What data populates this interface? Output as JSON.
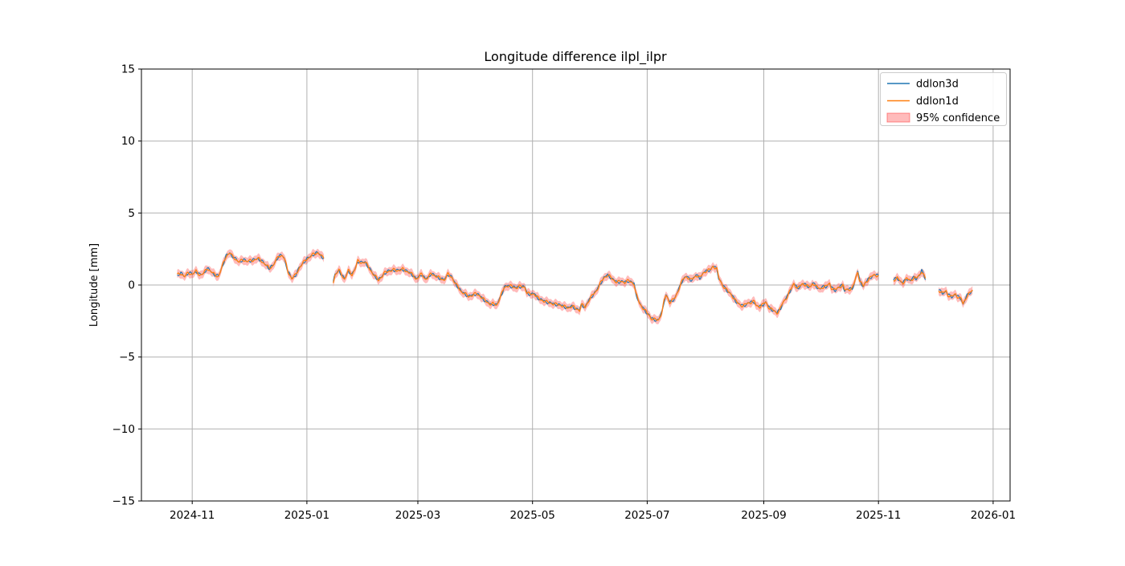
{
  "figure": {
    "title": "Longitude difference ilpl_ilpr",
    "ylabel": "Longitude [mm]"
  },
  "colors": {
    "background": "#ffffff",
    "grid": "#b0b0b0",
    "axes_frame": "#000000",
    "legend_edge": "#cccccc"
  },
  "chart_data": {
    "type": "line",
    "title": "Longitude difference ilpl_ilpr",
    "xlabel": "",
    "ylabel": "Longitude [mm]",
    "grid": true,
    "legend_position": "upper right",
    "ylim": [
      -15,
      15
    ],
    "y_ticks": [
      "−15",
      "−10",
      "−5",
      "0",
      "5",
      "10",
      "15"
    ],
    "y_tick_values": [
      -15,
      -10,
      -5,
      0,
      5,
      10,
      15
    ],
    "x_axis": {
      "epoch": "2024-10-05",
      "span_days": 462,
      "ticks": [
        {
          "label": "2024-11",
          "day": 27
        },
        {
          "label": "2025-01",
          "day": 88
        },
        {
          "label": "2025-03",
          "day": 147
        },
        {
          "label": "2025-05",
          "day": 208
        },
        {
          "label": "2025-07",
          "day": 269
        },
        {
          "label": "2025-09",
          "day": 331
        },
        {
          "label": "2025-11",
          "day": 392
        },
        {
          "label": "2026-01",
          "day": 453
        }
      ]
    },
    "series": [
      {
        "name": "ddlon3d",
        "color": "#1f77b4",
        "line_width": 1.2
      },
      {
        "name": "ddlon1d",
        "color": "#ff7f0e",
        "line_width": 1.3
      }
    ],
    "series_note": "ddlon3d and ddlon1d overlap within line width at this scale; shared sampled signal below as [days since 2024-10-05, mm]; null marks a data gap",
    "noise_amplitude_mm": 0.12,
    "confidence_band": {
      "label": "95% confidence",
      "color": "#ff3c3c",
      "alpha": 0.35,
      "half_width_mm": 0.28
    },
    "points_day_mm": [
      [
        19,
        0.7
      ],
      [
        21,
        0.8
      ],
      [
        23,
        0.6
      ],
      [
        25,
        0.85
      ],
      [
        27,
        0.75
      ],
      [
        29,
        0.95
      ],
      [
        31,
        0.7
      ],
      [
        33,
        0.8
      ],
      [
        35,
        1.15
      ],
      [
        37,
        0.95
      ],
      [
        39,
        0.7
      ],
      [
        41,
        0.6
      ],
      [
        43,
        1.3
      ],
      [
        45,
        2.0
      ],
      [
        47,
        2.25
      ],
      [
        48,
        2.05
      ],
      [
        50,
        1.8
      ],
      [
        52,
        1.6
      ],
      [
        54,
        1.75
      ],
      [
        56,
        1.65
      ],
      [
        59,
        1.7
      ],
      [
        61,
        1.8
      ],
      [
        62,
        1.85
      ],
      [
        64,
        1.65
      ],
      [
        67,
        1.3
      ],
      [
        68,
        1.15
      ],
      [
        70,
        1.35
      ],
      [
        71,
        1.6
      ],
      [
        73,
        2.0
      ],
      [
        75,
        2.05
      ],
      [
        76,
        1.85
      ],
      [
        78,
        0.9
      ],
      [
        80,
        0.45
      ],
      [
        82,
        0.7
      ],
      [
        84,
        1.2
      ],
      [
        86,
        1.55
      ],
      [
        88,
        1.8
      ],
      [
        91,
        2.1
      ],
      [
        92,
        2.15
      ],
      [
        94,
        2.25
      ],
      [
        96,
        1.95
      ],
      [
        97,
        1.9
      ],
      null,
      [
        102,
        0.2
      ],
      [
        103,
        0.7
      ],
      [
        105,
        1.05
      ],
      [
        106,
        0.8
      ],
      [
        108,
        0.4
      ],
      [
        110,
        1.0
      ],
      [
        112,
        0.7
      ],
      [
        114,
        1.25
      ],
      [
        115,
        1.65
      ],
      [
        117,
        1.55
      ],
      [
        119,
        1.6
      ],
      [
        121,
        1.2
      ],
      [
        123,
        0.8
      ],
      [
        125,
        0.5
      ],
      [
        126,
        0.35
      ],
      [
        128,
        0.6
      ],
      [
        129,
        0.8
      ],
      [
        131,
        0.95
      ],
      [
        134,
        1.05
      ],
      [
        136,
        1.0
      ],
      [
        139,
        1.1
      ],
      [
        141,
        0.95
      ],
      [
        143,
        0.85
      ],
      [
        145,
        0.6
      ],
      [
        146,
        0.4
      ],
      [
        148,
        0.65
      ],
      [
        149,
        0.75
      ],
      [
        151,
        0.4
      ],
      [
        153,
        0.6
      ],
      [
        154,
        0.8
      ],
      [
        156,
        0.65
      ],
      [
        157,
        0.6
      ],
      [
        159,
        0.45
      ],
      [
        161,
        0.35
      ],
      [
        163,
        0.75
      ],
      [
        165,
        0.55
      ],
      [
        167,
        0.1
      ],
      [
        169,
        -0.25
      ],
      [
        170,
        -0.45
      ],
      [
        172,
        -0.6
      ],
      [
        174,
        -0.8
      ],
      [
        176,
        -0.7
      ],
      [
        178,
        -0.6
      ],
      [
        180,
        -0.75
      ],
      [
        182,
        -1.0
      ],
      [
        184,
        -1.2
      ],
      [
        186,
        -1.35
      ],
      [
        187,
        -1.3
      ],
      [
        189,
        -1.4
      ],
      [
        190,
        -1.1
      ],
      [
        192,
        -0.5
      ],
      [
        193,
        -0.15
      ],
      [
        195,
        -0.05
      ],
      [
        197,
        -0.1
      ],
      [
        199,
        -0.2
      ],
      [
        201,
        -0.1
      ],
      [
        204,
        -0.15
      ],
      [
        205,
        -0.55
      ],
      [
        207,
        -0.65
      ],
      [
        209,
        -0.6
      ],
      [
        210,
        -0.8
      ],
      [
        212,
        -1.0
      ],
      [
        214,
        -1.1
      ],
      [
        216,
        -1.2
      ],
      [
        219,
        -1.3
      ],
      [
        221,
        -1.35
      ],
      [
        223,
        -1.4
      ],
      [
        225,
        -1.5
      ],
      [
        227,
        -1.6
      ],
      [
        229,
        -1.45
      ],
      [
        231,
        -1.65
      ],
      [
        233,
        -1.75
      ],
      [
        234,
        -1.35
      ],
      [
        236,
        -1.55
      ],
      [
        238,
        -1.05
      ],
      [
        240,
        -0.7
      ],
      [
        242,
        -0.4
      ],
      [
        244,
        0.1
      ],
      [
        246,
        0.5
      ],
      [
        248,
        0.7
      ],
      [
        249,
        0.6
      ],
      [
        251,
        0.35
      ],
      [
        253,
        0.2
      ],
      [
        255,
        0.25
      ],
      [
        257,
        0.2
      ],
      [
        259,
        0.3
      ],
      [
        262,
        0.1
      ],
      [
        263,
        -0.6
      ],
      [
        265,
        -1.3
      ],
      [
        268,
        -1.8
      ],
      [
        270,
        -2.1
      ],
      [
        271,
        -2.3
      ],
      [
        273,
        -2.4
      ],
      [
        275,
        -2.45
      ],
      [
        277,
        -1.8
      ],
      [
        278,
        -1.1
      ],
      [
        279,
        -0.7
      ],
      [
        281,
        -1.2
      ],
      [
        283,
        -1.0
      ],
      [
        284,
        -0.85
      ],
      [
        286,
        -0.2
      ],
      [
        288,
        0.4
      ],
      [
        290,
        0.6
      ],
      [
        292,
        0.35
      ],
      [
        294,
        0.5
      ],
      [
        295,
        0.7
      ],
      [
        297,
        0.5
      ],
      [
        299,
        0.85
      ],
      [
        300,
        0.95
      ],
      [
        303,
        1.1
      ],
      [
        304,
        1.3
      ],
      [
        306,
        1.15
      ],
      [
        307,
        0.5
      ],
      [
        309,
        0.0
      ],
      [
        311,
        -0.3
      ],
      [
        312,
        -0.45
      ],
      [
        314,
        -0.7
      ],
      [
        316,
        -1.1
      ],
      [
        318,
        -1.35
      ],
      [
        320,
        -1.45
      ],
      [
        322,
        -1.3
      ],
      [
        324,
        -1.2
      ],
      [
        326,
        -1.15
      ],
      [
        327,
        -1.45
      ],
      [
        329,
        -1.5
      ],
      [
        331,
        -1.3
      ],
      [
        332,
        -1.2
      ],
      [
        334,
        -1.6
      ],
      [
        336,
        -1.75
      ],
      [
        338,
        -1.95
      ],
      [
        340,
        -1.6
      ],
      [
        341,
        -1.25
      ],
      [
        343,
        -0.9
      ],
      [
        345,
        -0.4
      ],
      [
        347,
        0.1
      ],
      [
        349,
        -0.25
      ],
      [
        350,
        -0.1
      ],
      [
        352,
        0.1
      ],
      [
        354,
        -0.05
      ],
      [
        356,
        -0.15
      ],
      [
        357,
        0.15
      ],
      [
        359,
        -0.1
      ],
      [
        361,
        -0.3
      ],
      [
        362,
        -0.15
      ],
      [
        364,
        -0.1
      ],
      [
        366,
        0.1
      ],
      [
        367,
        -0.2
      ],
      [
        369,
        -0.35
      ],
      [
        371,
        -0.15
      ],
      [
        373,
        0.0
      ],
      [
        374,
        -0.35
      ],
      [
        376,
        -0.3
      ],
      [
        378,
        -0.25
      ],
      [
        379,
        0.1
      ],
      [
        381,
        0.95
      ],
      [
        382,
        0.3
      ],
      [
        384,
        -0.1
      ],
      [
        385,
        0.15
      ],
      [
        387,
        0.45
      ],
      [
        389,
        0.65
      ],
      [
        390,
        0.7
      ],
      [
        392,
        0.65
      ],
      null,
      [
        400,
        0.35
      ],
      [
        402,
        0.5
      ],
      [
        404,
        0.2
      ],
      [
        405,
        0.15
      ],
      [
        407,
        0.45
      ],
      [
        409,
        0.3
      ],
      [
        411,
        0.55
      ],
      [
        412,
        0.45
      ],
      [
        414,
        0.7
      ],
      [
        415,
        1.0
      ],
      [
        417,
        0.45
      ],
      null,
      [
        424,
        -0.35
      ],
      [
        426,
        -0.55
      ],
      [
        428,
        -0.45
      ],
      [
        429,
        -0.7
      ],
      [
        431,
        -0.8
      ],
      [
        433,
        -0.65
      ],
      [
        434,
        -0.8
      ],
      [
        436,
        -0.95
      ],
      [
        437,
        -1.35
      ],
      [
        439,
        -0.75
      ],
      [
        440,
        -0.6
      ],
      [
        442,
        -0.4
      ]
    ]
  },
  "legend": {
    "items": [
      {
        "label": "ddlon3d",
        "swatch": "line"
      },
      {
        "label": "ddlon1d",
        "swatch": "line"
      },
      {
        "label": "95% confidence",
        "swatch": "patch"
      }
    ]
  }
}
